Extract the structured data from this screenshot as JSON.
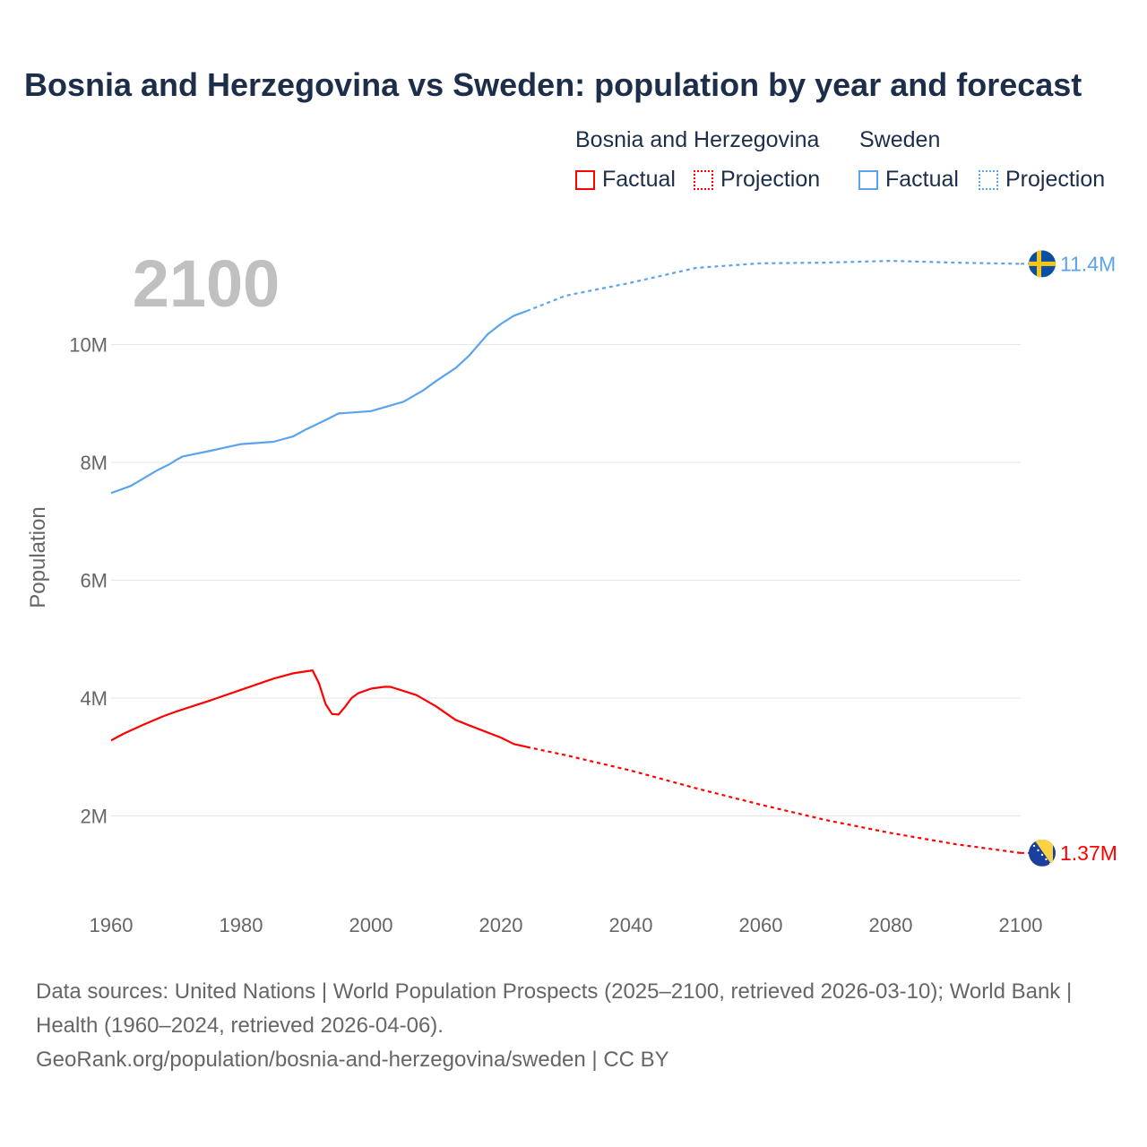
{
  "chart_data": {
    "type": "line",
    "title": "Bosnia and Herzegovina vs Sweden: population by year and forecast",
    "ylabel": "Population",
    "xlabel": "",
    "xlim": [
      1960,
      2100
    ],
    "ylim": [
      0,
      11.6
    ],
    "y_unit": "millions",
    "x_ticks": [
      "1960",
      "1980",
      "2000",
      "2020",
      "2040",
      "2060",
      "2080",
      "2100"
    ],
    "y_ticks": [
      {
        "value": 2,
        "label": "2M"
      },
      {
        "value": 4,
        "label": "4M"
      },
      {
        "value": 6,
        "label": "6M"
      },
      {
        "value": 8,
        "label": "8M"
      },
      {
        "value": 10,
        "label": "10M"
      }
    ],
    "grid": true,
    "year_indicator": "2100",
    "legend": {
      "groups": [
        {
          "name": "Bosnia and Herzegovina",
          "factual": "Factual",
          "projection": "Projection"
        },
        {
          "name": "Sweden",
          "factual": "Factual",
          "projection": "Projection"
        }
      ],
      "placement": "top-right"
    },
    "series": [
      {
        "name": "Bosnia and Herzegovina",
        "color": "#ff0000",
        "end_label": "1.37M",
        "flag": "bosnia-flag",
        "factual": [
          [
            1960,
            3.28
          ],
          [
            1962,
            3.4
          ],
          [
            1965,
            3.55
          ],
          [
            1968,
            3.69
          ],
          [
            1970,
            3.77
          ],
          [
            1975,
            3.95
          ],
          [
            1980,
            4.14
          ],
          [
            1985,
            4.33
          ],
          [
            1988,
            4.42
          ],
          [
            1991,
            4.47
          ],
          [
            1992,
            4.25
          ],
          [
            1993,
            3.9
          ],
          [
            1994,
            3.73
          ],
          [
            1995,
            3.72
          ],
          [
            1996,
            3.85
          ],
          [
            1997,
            4.0
          ],
          [
            1998,
            4.08
          ],
          [
            2000,
            4.16
          ],
          [
            2002,
            4.19
          ],
          [
            2003,
            4.19
          ],
          [
            2005,
            4.12
          ],
          [
            2007,
            4.05
          ],
          [
            2010,
            3.86
          ],
          [
            2013,
            3.63
          ],
          [
            2015,
            3.54
          ],
          [
            2020,
            3.33
          ],
          [
            2022,
            3.22
          ],
          [
            2024,
            3.17
          ]
        ],
        "projection": [
          [
            2024,
            3.17
          ],
          [
            2030,
            3.03
          ],
          [
            2040,
            2.77
          ],
          [
            2050,
            2.47
          ],
          [
            2060,
            2.19
          ],
          [
            2070,
            1.93
          ],
          [
            2080,
            1.71
          ],
          [
            2090,
            1.52
          ],
          [
            2100,
            1.37
          ]
        ]
      },
      {
        "name": "Sweden",
        "color": "#5ba4ec",
        "end_label": "11.4M",
        "flag": "sweden-flag",
        "factual": [
          [
            1960,
            7.48
          ],
          [
            1963,
            7.6
          ],
          [
            1965,
            7.73
          ],
          [
            1967,
            7.86
          ],
          [
            1969,
            7.97
          ],
          [
            1970,
            8.04
          ],
          [
            1971,
            8.1
          ],
          [
            1975,
            8.19
          ],
          [
            1980,
            8.31
          ],
          [
            1985,
            8.35
          ],
          [
            1988,
            8.44
          ],
          [
            1990,
            8.56
          ],
          [
            1993,
            8.72
          ],
          [
            1995,
            8.83
          ],
          [
            2000,
            8.87
          ],
          [
            2005,
            9.03
          ],
          [
            2008,
            9.22
          ],
          [
            2010,
            9.38
          ],
          [
            2013,
            9.6
          ],
          [
            2015,
            9.8
          ],
          [
            2018,
            10.18
          ],
          [
            2020,
            10.35
          ],
          [
            2022,
            10.49
          ],
          [
            2024,
            10.57
          ]
        ],
        "projection": [
          [
            2024,
            10.57
          ],
          [
            2030,
            10.83
          ],
          [
            2040,
            11.05
          ],
          [
            2050,
            11.3
          ],
          [
            2060,
            11.38
          ],
          [
            2070,
            11.39
          ],
          [
            2080,
            11.42
          ],
          [
            2090,
            11.39
          ],
          [
            2100,
            11.37
          ]
        ]
      }
    ]
  },
  "footer": {
    "sources": "Data sources: United Nations | World Population Prospects (2025–2100, retrieved 2026-03-10); World Bank | Health (1960–2024, retrieved 2026-04-06).",
    "credit": "GeoRank.org/population/bosnia-and-herzegovina/sweden | CC BY"
  }
}
